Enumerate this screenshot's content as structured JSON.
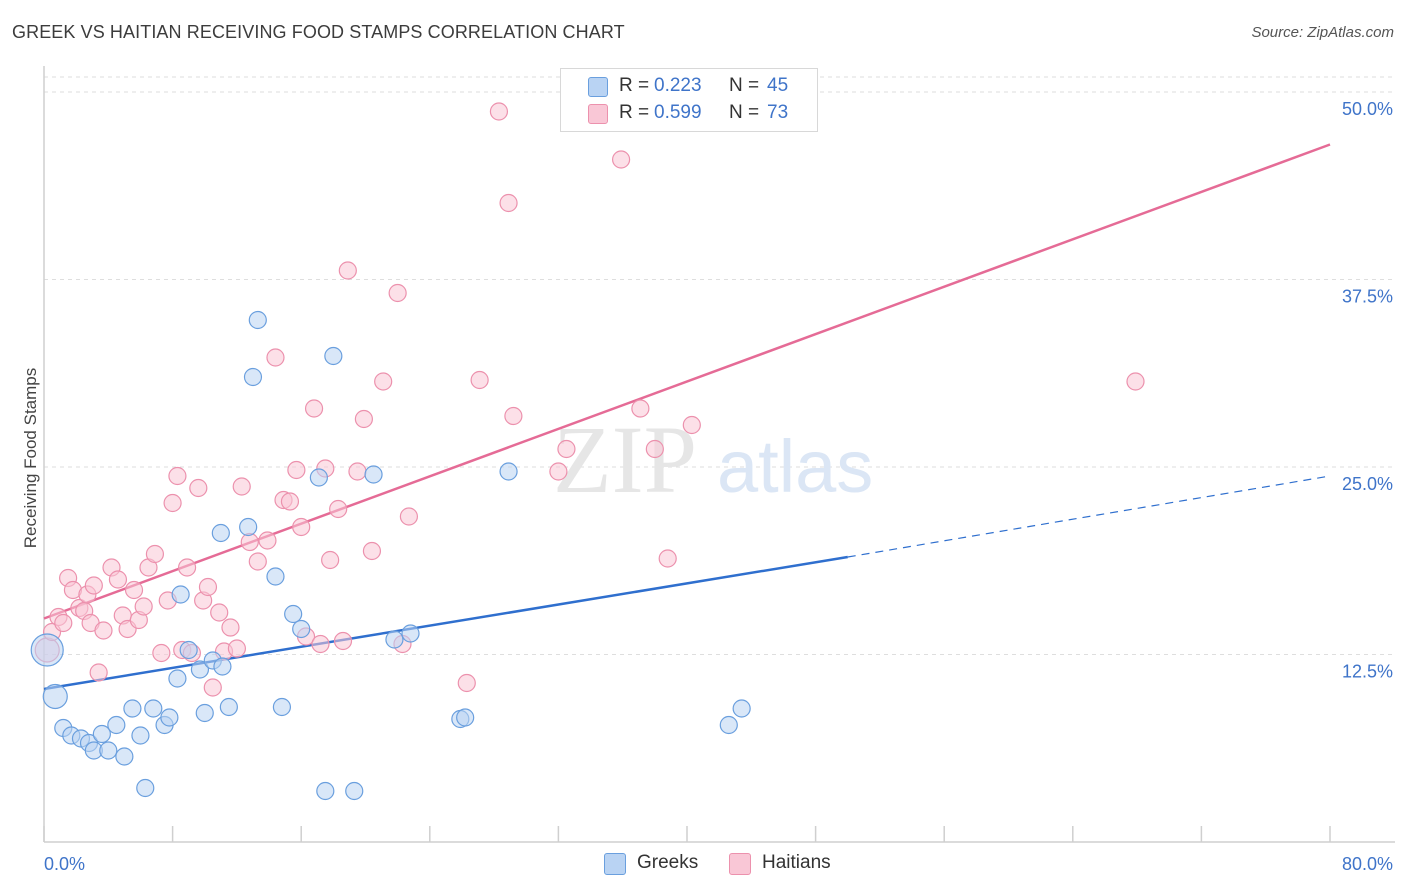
{
  "header": {
    "title": "GREEK VS HAITIAN RECEIVING FOOD STAMPS CORRELATION CHART",
    "source": "Source: ZipAtlas.com"
  },
  "watermark": {
    "zip": "ZIP",
    "atlas": "atlas"
  },
  "legend": {
    "greeks": {
      "r_label": "R =",
      "r_value": "0.223",
      "n_label": "N =",
      "n_value": "45"
    },
    "haitians": {
      "r_label": "R =",
      "r_value": "0.599",
      "n_label": "N =",
      "n_value": "73"
    }
  },
  "bottom_legend": {
    "greeks": "Greeks",
    "haitians": "Haitians"
  },
  "colors": {
    "greek_fill": "#b9d3f3",
    "greek_stroke": "#6a9fde",
    "greek_line": "#2f6fce",
    "haitian_fill": "#f9c7d6",
    "haitian_stroke": "#ec91ad",
    "haitian_line": "#e56b96",
    "tick": "#3f74c9",
    "grid": "#dedede"
  },
  "chart_data": {
    "type": "scatter",
    "title": "GREEK VS HAITIAN RECEIVING FOOD STAMPS CORRELATION CHART",
    "xlabel": "",
    "ylabel": "Receiving Food Stamps",
    "xlim": [
      0,
      80
    ],
    "ylim": [
      0,
      52
    ],
    "x_tick_labels": [
      "0.0%",
      "80.0%"
    ],
    "y_ticks": [
      12.5,
      25.0,
      37.5,
      50.0
    ],
    "y_tick_labels": [
      "12.5%",
      "25.0%",
      "37.5%",
      "50.0%"
    ],
    "grid": true,
    "series": [
      {
        "name": "Greeks",
        "r": 0.223,
        "n": 45,
        "trend": {
          "x": [
            0,
            50
          ],
          "y": [
            10.2,
            19.0
          ]
        },
        "trend_extension": {
          "x": [
            50,
            80
          ],
          "y": [
            19.0,
            24.4
          ]
        },
        "points": [
          [
            0.2,
            12.8,
            3
          ],
          [
            0.7,
            9.7,
            2
          ],
          [
            1.2,
            7.6,
            1
          ],
          [
            1.7,
            7.1,
            1
          ],
          [
            2.3,
            6.9,
            1
          ],
          [
            2.8,
            6.6,
            1
          ],
          [
            3.1,
            6.1,
            1
          ],
          [
            3.6,
            7.2,
            1
          ],
          [
            4.0,
            6.1,
            1
          ],
          [
            4.5,
            7.8,
            1
          ],
          [
            5.0,
            5.7,
            1
          ],
          [
            5.5,
            8.9,
            1
          ],
          [
            6.0,
            7.1,
            1
          ],
          [
            6.3,
            3.6,
            1
          ],
          [
            6.8,
            8.9,
            1
          ],
          [
            7.5,
            7.8,
            1
          ],
          [
            7.8,
            8.3,
            1
          ],
          [
            8.3,
            10.9,
            1
          ],
          [
            8.5,
            16.5,
            1
          ],
          [
            9.0,
            12.8,
            1
          ],
          [
            9.7,
            11.5,
            1
          ],
          [
            10.0,
            8.6,
            1
          ],
          [
            10.5,
            12.1,
            1
          ],
          [
            11.1,
            11.7,
            1
          ],
          [
            11.5,
            9.0,
            1
          ],
          [
            11.0,
            20.6,
            1
          ],
          [
            12.7,
            21.0,
            1
          ],
          [
            13.0,
            31.0,
            1
          ],
          [
            13.3,
            34.8,
            1
          ],
          [
            14.4,
            17.7,
            1
          ],
          [
            14.8,
            9.0,
            1
          ],
          [
            15.5,
            15.2,
            1
          ],
          [
            16.0,
            14.2,
            1
          ],
          [
            17.1,
            24.3,
            1
          ],
          [
            17.5,
            3.4,
            1
          ],
          [
            18.0,
            32.4,
            1
          ],
          [
            19.3,
            3.4,
            1
          ],
          [
            20.5,
            24.5,
            1
          ],
          [
            21.8,
            13.5,
            1
          ],
          [
            22.8,
            13.9,
            1
          ],
          [
            25.9,
            8.2,
            1
          ],
          [
            26.2,
            8.3,
            1
          ],
          [
            28.9,
            24.7,
            1
          ],
          [
            42.6,
            7.8,
            1
          ],
          [
            43.4,
            8.9,
            1
          ]
        ]
      },
      {
        "name": "Haitians",
        "r": 0.599,
        "n": 73,
        "trend": {
          "x": [
            0,
            80
          ],
          "y": [
            14.9,
            46.5
          ]
        },
        "points": [
          [
            0.2,
            12.8,
            2
          ],
          [
            0.5,
            14.0,
            1
          ],
          [
            0.9,
            15.0,
            1
          ],
          [
            1.2,
            14.6,
            1
          ],
          [
            1.5,
            17.6,
            1
          ],
          [
            1.8,
            16.8,
            1
          ],
          [
            2.2,
            15.6,
            1
          ],
          [
            2.5,
            15.4,
            1
          ],
          [
            2.7,
            16.5,
            1
          ],
          [
            2.9,
            14.6,
            1
          ],
          [
            3.1,
            17.1,
            1
          ],
          [
            3.4,
            11.3,
            1
          ],
          [
            3.7,
            14.1,
            1
          ],
          [
            4.2,
            18.3,
            1
          ],
          [
            4.6,
            17.5,
            1
          ],
          [
            4.9,
            15.1,
            1
          ],
          [
            5.2,
            14.2,
            1
          ],
          [
            5.6,
            16.8,
            1
          ],
          [
            5.9,
            14.8,
            1
          ],
          [
            6.2,
            15.7,
            1
          ],
          [
            6.5,
            18.3,
            1
          ],
          [
            6.9,
            19.2,
            1
          ],
          [
            7.3,
            12.6,
            1
          ],
          [
            7.7,
            16.1,
            1
          ],
          [
            8.0,
            22.6,
            1
          ],
          [
            8.3,
            24.4,
            1
          ],
          [
            8.6,
            12.8,
            1
          ],
          [
            8.9,
            18.3,
            1
          ],
          [
            9.2,
            12.6,
            1
          ],
          [
            9.6,
            23.6,
            1
          ],
          [
            9.9,
            16.1,
            1
          ],
          [
            10.2,
            17.0,
            1
          ],
          [
            10.5,
            10.3,
            1
          ],
          [
            10.9,
            15.3,
            1
          ],
          [
            11.2,
            12.7,
            1
          ],
          [
            11.6,
            14.3,
            1
          ],
          [
            12.0,
            12.9,
            1
          ],
          [
            12.3,
            23.7,
            1
          ],
          [
            12.8,
            20.0,
            1
          ],
          [
            13.3,
            18.7,
            1
          ],
          [
            13.9,
            20.1,
            1
          ],
          [
            14.4,
            32.3,
            1
          ],
          [
            14.9,
            22.8,
            1
          ],
          [
            15.3,
            22.7,
            1
          ],
          [
            15.7,
            24.8,
            1
          ],
          [
            16.0,
            21.0,
            1
          ],
          [
            16.3,
            13.7,
            1
          ],
          [
            16.8,
            28.9,
            1
          ],
          [
            17.2,
            13.2,
            1
          ],
          [
            17.5,
            24.9,
            1
          ],
          [
            17.8,
            18.8,
            1
          ],
          [
            18.3,
            22.2,
            1
          ],
          [
            18.6,
            13.4,
            1
          ],
          [
            18.9,
            38.1,
            1
          ],
          [
            19.5,
            24.7,
            1
          ],
          [
            19.9,
            28.2,
            1
          ],
          [
            20.4,
            19.4,
            1
          ],
          [
            21.1,
            30.7,
            1
          ],
          [
            22.0,
            36.6,
            1
          ],
          [
            22.3,
            13.2,
            1
          ],
          [
            22.7,
            21.7,
            1
          ],
          [
            26.3,
            10.6,
            1
          ],
          [
            27.1,
            30.8,
            1
          ],
          [
            28.3,
            48.7,
            1
          ],
          [
            28.9,
            42.6,
            1
          ],
          [
            29.2,
            28.4,
            1
          ],
          [
            32.0,
            24.7,
            1
          ],
          [
            32.5,
            26.2,
            1
          ],
          [
            35.9,
            45.5,
            1
          ],
          [
            37.1,
            28.9,
            1
          ],
          [
            38.0,
            26.2,
            1
          ],
          [
            38.8,
            18.9,
            1
          ],
          [
            40.3,
            27.8,
            1
          ],
          [
            67.9,
            30.7,
            1
          ]
        ]
      }
    ]
  }
}
